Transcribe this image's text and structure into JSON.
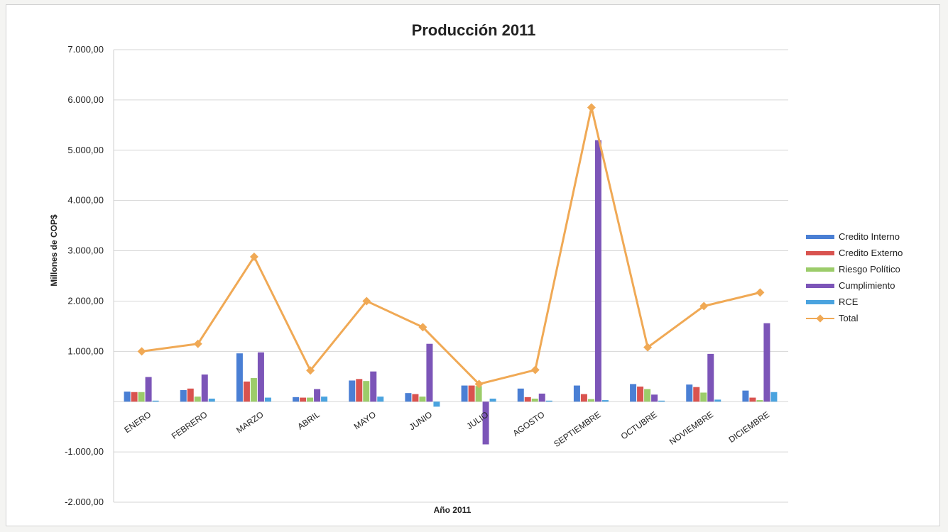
{
  "chart_data": {
    "type": "bar",
    "title": "Producción 2011",
    "xlabel": "Año 2011",
    "ylabel": "Millones de COP$",
    "ylim": [
      -2000,
      7000
    ],
    "yticks": [
      "7.000,00",
      "6.000,00",
      "5.000,00",
      "4.000,00",
      "3.000,00",
      "2.000,00",
      "1.000,00",
      "",
      "-1.000,00",
      "-2.000,00"
    ],
    "ytick_values": [
      7000,
      6000,
      5000,
      4000,
      3000,
      2000,
      1000,
      0,
      -1000,
      -2000
    ],
    "grid": true,
    "legend_position": "right",
    "categories": [
      "ENERO",
      "FEBRERO",
      "MARZO",
      "ABRIL",
      "MAYO",
      "JUNIO",
      "JULIO",
      "AGOSTO",
      "SEPTIEMBRE",
      "OCTUBRE",
      "NOVIEMBRE",
      "DICIEMBRE"
    ],
    "series": [
      {
        "name": "Credito Interno",
        "type": "bar",
        "color": "#4a7fd4",
        "values": [
          200,
          230,
          960,
          90,
          420,
          170,
          320,
          260,
          320,
          350,
          340,
          220
        ]
      },
      {
        "name": "Credito Externo",
        "type": "bar",
        "color": "#d9534f",
        "values": [
          190,
          260,
          400,
          80,
          450,
          150,
          320,
          90,
          150,
          300,
          290,
          80
        ]
      },
      {
        "name": "Riesgo Político",
        "type": "bar",
        "color": "#9ccc6a",
        "values": [
          190,
          100,
          470,
          80,
          410,
          100,
          310,
          60,
          50,
          250,
          180,
          30
        ]
      },
      {
        "name": "Cumplimiento",
        "type": "bar",
        "color": "#7c55b8",
        "values": [
          490,
          540,
          980,
          250,
          600,
          1150,
          -850,
          160,
          5200,
          140,
          950,
          1560
        ]
      },
      {
        "name": "RCE",
        "type": "bar",
        "color": "#4aa3df",
        "values": [
          20,
          60,
          80,
          100,
          100,
          -100,
          60,
          20,
          30,
          20,
          40,
          190
        ]
      },
      {
        "name": "Total",
        "type": "line",
        "color": "#f0a955",
        "values": [
          1000,
          1150,
          2880,
          620,
          2000,
          1480,
          350,
          630,
          5850,
          1080,
          1900,
          2170
        ]
      }
    ]
  }
}
